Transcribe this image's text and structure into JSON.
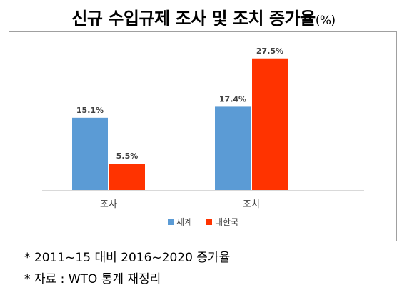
{
  "title": "신규 수입규제 조사 및 조치 증가율",
  "title_unit": "(%)",
  "chart_data": {
    "type": "bar",
    "categories": [
      "조사",
      "조치"
    ],
    "series": [
      {
        "name": "세계",
        "values": [
          15.1,
          17.4
        ],
        "labels": [
          "15.1%",
          "17.4%"
        ],
        "color": "#5B9BD5"
      },
      {
        "name": "대한국",
        "values": [
          5.5,
          27.5
        ],
        "labels": [
          "5.5%",
          "27.5%"
        ],
        "color": "#FF3300"
      }
    ],
    "ylim": [
      0,
      30
    ],
    "grid": false,
    "legend_position": "bottom"
  },
  "notes": [
    "* 2011~15 대비 2016~2020 증가율",
    "* 자료 : WTO 통계 재정리"
  ]
}
